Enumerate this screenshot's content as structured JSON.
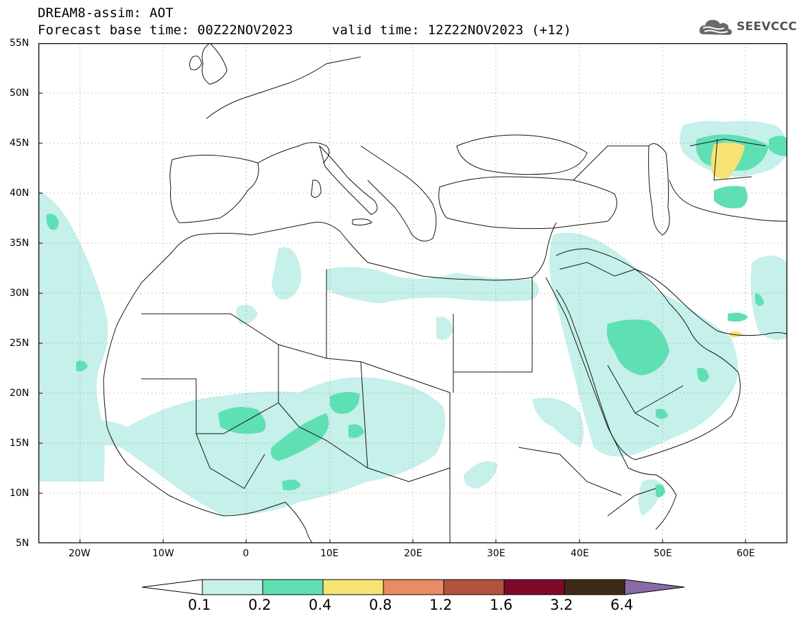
{
  "header": {
    "line1": "DREAM8-assim: AOT",
    "line2": "Forecast base time: 00Z22NOV2023",
    "line3": "valid time: 12Z22NOV2023 (+12)"
  },
  "logo": {
    "text": "SEEVCCC",
    "icon": "cloud-icon"
  },
  "map": {
    "lon_range": [
      -25,
      65
    ],
    "lat_range": [
      5,
      55
    ],
    "lat_labels": [
      "55N",
      "50N",
      "45N",
      "40N",
      "35N",
      "30N",
      "25N",
      "20N",
      "15N",
      "10N",
      "5N"
    ],
    "lon_labels": [
      "20W",
      "10W",
      "0",
      "10E",
      "20E",
      "30E",
      "40E",
      "50E",
      "60E"
    ],
    "grid": "dotted"
  },
  "colorbar": {
    "labels": [
      "0.1",
      "0.2",
      "0.4",
      "0.8",
      "1.2",
      "1.6",
      "3.2",
      "6.4"
    ],
    "colors": [
      "#c6f0ea",
      "#5fe0b4",
      "#f6e374",
      "#e98b65",
      "#b0533f",
      "#7e0a2a",
      "#3e2a18",
      "#8a6aa7"
    ]
  }
}
